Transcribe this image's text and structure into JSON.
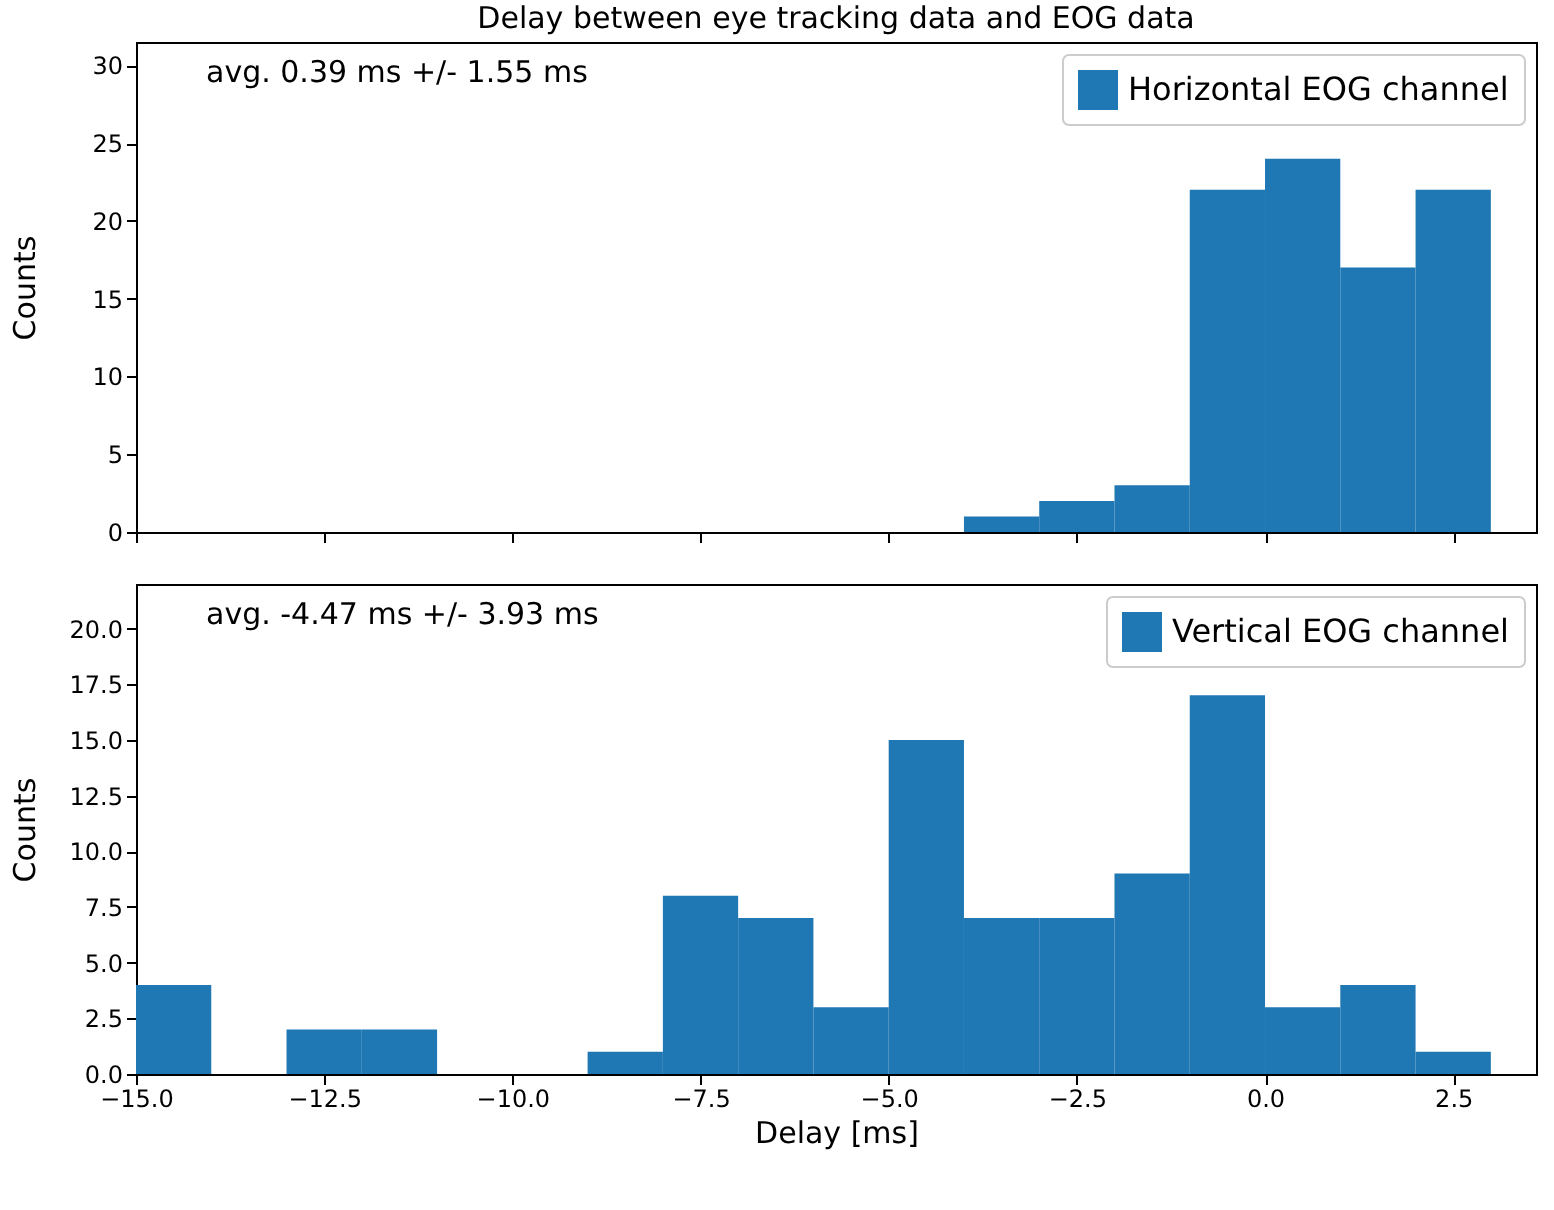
{
  "chart_data": [
    {
      "type": "histogram",
      "title": "Delay between eye tracking data and EOG data",
      "ylabel": "Counts",
      "bins": [
        -15,
        -14,
        -13,
        -12,
        -11,
        -10,
        -9,
        -8,
        -7,
        -6,
        -5,
        -4,
        -3,
        -2,
        -1,
        0,
        1,
        2,
        3
      ],
      "series": [
        {
          "name": "Horizontal EOG channel",
          "color": "#1f77b4",
          "values": [
            0,
            0,
            0,
            0,
            0,
            0,
            0,
            0,
            0,
            0,
            0,
            1,
            2,
            3,
            22,
            24,
            17,
            22
          ]
        }
      ],
      "xlim": [
        -15,
        3.6
      ],
      "xticks": [
        {
          "value": -15,
          "label": null
        },
        {
          "value": -12.5,
          "label": null
        },
        {
          "value": -10,
          "label": null
        },
        {
          "value": -7.5,
          "label": null
        },
        {
          "value": -5,
          "label": null
        },
        {
          "value": -2.5,
          "label": null
        },
        {
          "value": 0,
          "label": null
        },
        {
          "value": 2.5,
          "label": null
        }
      ],
      "ylim": [
        0,
        31.5
      ],
      "yticks": [
        0,
        5,
        10,
        15,
        20,
        25,
        30
      ],
      "tick_labels": "y",
      "grid": false,
      "legend": "top right",
      "annotations": [
        "avg. 0.39 ms +/-  1.55 ms"
      ]
    },
    {
      "type": "histogram",
      "xlabel": "Delay [ms]",
      "ylabel": "Counts",
      "bins": [
        -15,
        -14,
        -13,
        -12,
        -11,
        -10,
        -9,
        -8,
        -7,
        -6,
        -5,
        -4,
        -3,
        -2,
        -1,
        0,
        1,
        2,
        3
      ],
      "series": [
        {
          "name": "Vertical EOG channel",
          "color": "#1f77b4",
          "values": [
            4,
            0,
            2,
            2,
            0,
            0,
            1,
            8,
            7,
            3,
            15,
            7,
            7,
            9,
            17,
            3,
            4,
            1
          ]
        }
      ],
      "xlim": [
        -15,
        3.6
      ],
      "xticks": [
        {
          "value": -15,
          "label": "−15.0"
        },
        {
          "value": -12.5,
          "label": "−12.5"
        },
        {
          "value": -10,
          "label": "−10.0"
        },
        {
          "value": -7.5,
          "label": "−7.5"
        },
        {
          "value": -5,
          "label": "−5.0"
        },
        {
          "value": -2.5,
          "label": "−2.5"
        },
        {
          "value": 0,
          "label": "0.0"
        },
        {
          "value": 2.5,
          "label": "2.5"
        }
      ],
      "ylim": [
        0,
        22
      ],
      "yticks": [
        {
          "value": 0,
          "label": "0.0"
        },
        2.5,
        {
          "value": 5,
          "label": "5.0"
        },
        7.5,
        {
          "value": 10,
          "label": "10.0"
        },
        12.5,
        {
          "value": 15,
          "label": "15.0"
        },
        17.5,
        {
          "value": 20,
          "label": "20.0"
        }
      ],
      "grid": false,
      "legend": "top right",
      "annotations": [
        "avg. -4.47 ms +/-  3.93 ms"
      ]
    }
  ]
}
